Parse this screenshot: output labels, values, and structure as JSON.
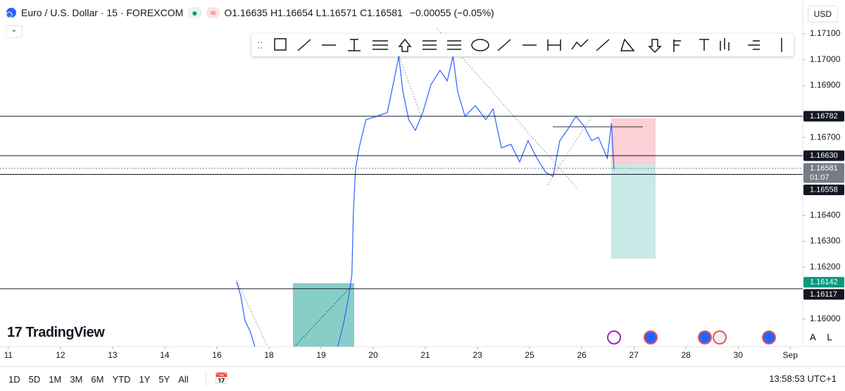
{
  "header": {
    "symbol": "Euro / U.S. Dollar · 15 · FOREXCOM",
    "ohlc": [
      {
        "key": "O",
        "value": "1.16635"
      },
      {
        "key": "H",
        "value": "1.16654"
      },
      {
        "key": "L",
        "value": "1.16571"
      },
      {
        "key": "C",
        "value": "1.16581"
      }
    ],
    "change": "−0.00055 (−0.05%)",
    "currency": "USD"
  },
  "logo": "TradingView",
  "scale_buttons": [
    "A",
    "L"
  ],
  "periods": [
    "1D",
    "5D",
    "1M",
    "3M",
    "6M",
    "YTD",
    "1Y",
    "5Y",
    "All"
  ],
  "clock": "13:58:53 UTC+1",
  "chart_data": {
    "type": "line",
    "color": "#2962ff",
    "x": [
      4.38,
      4.46,
      4.54,
      4.64,
      4.73,
      5.5,
      6.32,
      6.43,
      6.53,
      6.59,
      6.62,
      6.66,
      6.73,
      6.86,
      7.07,
      7.27,
      7.41,
      7.49,
      7.57,
      7.68,
      7.81,
      7.95,
      8.11,
      8.28,
      8.42,
      8.53,
      8.62,
      8.76,
      8.96,
      9.16,
      9.3,
      9.46,
      9.64,
      9.81,
      9.97,
      10.14,
      10.31,
      10.45,
      10.58,
      10.72,
      10.89,
      11.05,
      11.19,
      11.32,
      11.49,
      11.57,
      11.62
    ],
    "values": [
      1.16144,
      1.16089,
      1.15994,
      1.15953,
      1.15894,
      null,
      1.15894,
      1.15981,
      1.16089,
      1.16171,
      1.16415,
      1.16578,
      1.1666,
      1.16769,
      1.16782,
      1.16796,
      1.16932,
      1.17013,
      1.16877,
      1.16769,
      1.16728,
      1.16796,
      1.16905,
      1.16959,
      1.16918,
      1.17013,
      1.16877,
      1.16782,
      1.16823,
      1.16769,
      1.1681,
      1.1666,
      1.16674,
      1.16606,
      1.16688,
      1.1662,
      1.16565,
      1.16551,
      1.16688,
      1.16728,
      1.16782,
      1.16742,
      1.16688,
      1.16701,
      1.1662,
      1.16755,
      1.16578
    ],
    "xlim": [
      -0.16,
      15.24
    ],
    "xticks": [
      {
        "value": 0,
        "label": "11"
      },
      {
        "value": 1,
        "label": "12"
      },
      {
        "value": 2,
        "label": "13"
      },
      {
        "value": 3,
        "label": "14"
      },
      {
        "value": 4,
        "label": "16"
      },
      {
        "value": 5,
        "label": "18"
      },
      {
        "value": 6,
        "label": "19"
      },
      {
        "value": 7,
        "label": "20"
      },
      {
        "value": 8,
        "label": "21"
      },
      {
        "value": 9,
        "label": "23"
      },
      {
        "value": 10,
        "label": "25"
      },
      {
        "value": 11,
        "label": "26"
      },
      {
        "value": 12,
        "label": "27"
      },
      {
        "value": 13,
        "label": "28"
      },
      {
        "value": 14,
        "label": "30"
      },
      {
        "value": 15,
        "label": "Sep"
      }
    ],
    "ylim": [
      1.15894,
      1.1723
    ],
    "yticks": [
      {
        "value": 1.171,
        "label": "1.17100"
      },
      {
        "value": 1.17,
        "label": "1.17000"
      },
      {
        "value": 1.169,
        "label": "1.16900"
      },
      {
        "value": 1.167,
        "label": "1.16700"
      },
      {
        "value": 1.164,
        "label": "1.16400"
      },
      {
        "value": 1.163,
        "label": "1.16300"
      },
      {
        "value": 1.162,
        "label": "1.16200"
      },
      {
        "value": 1.16,
        "label": "1.16000"
      }
    ],
    "levels": [
      {
        "value": 1.16782,
        "color": "#131722",
        "line": true
      },
      {
        "value": {
          "value": 1.1663,
          "label": "1.16630"
        },
        "color": "#131722",
        "line": true
      },
      {
        "value": 1.16581,
        "sublabel": "01:07",
        "color": "#787b86",
        "line": true
      },
      {
        "value": 1.16558,
        "color": "#131722",
        "line": true
      },
      {
        "value": 1.16142,
        "color": "#089981",
        "line": false
      },
      {
        "value": 1.16117,
        "color": "#131722",
        "line": true
      }
    ]
  }
}
